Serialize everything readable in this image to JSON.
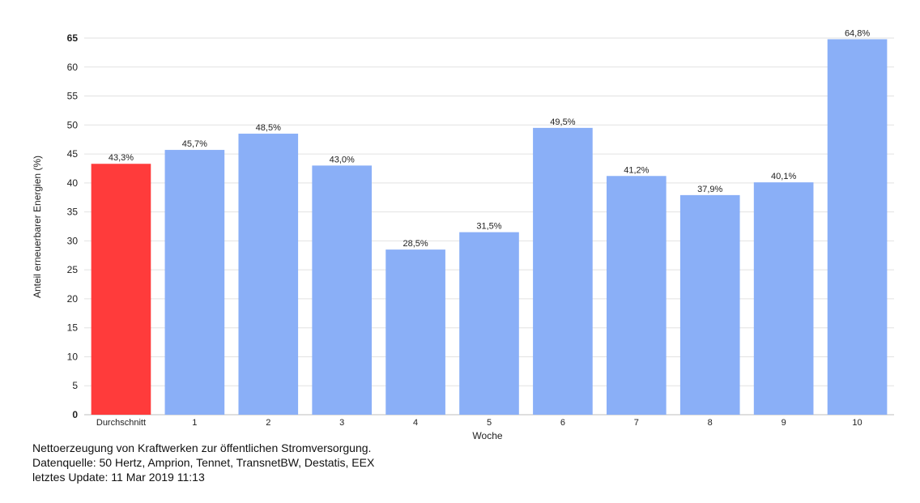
{
  "chart_data": {
    "type": "bar",
    "categories": [
      "Durchschnitt",
      "1",
      "2",
      "3",
      "4",
      "5",
      "6",
      "7",
      "8",
      "9",
      "10"
    ],
    "values": [
      43.3,
      45.7,
      48.5,
      43.0,
      28.5,
      31.5,
      49.5,
      41.2,
      37.9,
      40.1,
      64.8
    ],
    "data_labels": [
      "43,3%",
      "45,7%",
      "48,5%",
      "43,0%",
      "28,5%",
      "31,5%",
      "49,5%",
      "41,2%",
      "37,9%",
      "40,1%",
      "64,8%"
    ],
    "bar_colors": [
      "#ff3b3b",
      "#8aaff7",
      "#8aaff7",
      "#8aaff7",
      "#8aaff7",
      "#8aaff7",
      "#8aaff7",
      "#8aaff7",
      "#8aaff7",
      "#8aaff7",
      "#8aaff7"
    ],
    "xlabel": "Woche",
    "ylabel": "Anteil erneuerbarer Energien (%)",
    "ylim": [
      0,
      65
    ],
    "yticks": [
      0,
      5,
      10,
      15,
      20,
      25,
      30,
      35,
      40,
      45,
      50,
      55,
      60,
      65
    ],
    "ytick_labels": [
      "0",
      "5",
      "10",
      "15",
      "20",
      "25",
      "30",
      "35",
      "40",
      "45",
      "50",
      "55",
      "60",
      "65"
    ],
    "grid": true,
    "legend": "none"
  },
  "caption": {
    "line1": "Nettoerzeugung von Kraftwerken zur öffentlichen Stromversorgung.",
    "line2": "Datenquelle: 50 Hertz, Amprion, Tennet, TransnetBW, Destatis, EEX",
    "line3": "letztes Update: 11 Mar 2019 11:13"
  },
  "colors": {
    "grid": "#e2e2e2",
    "axis": "#bdbdbd",
    "text": "#222222"
  }
}
